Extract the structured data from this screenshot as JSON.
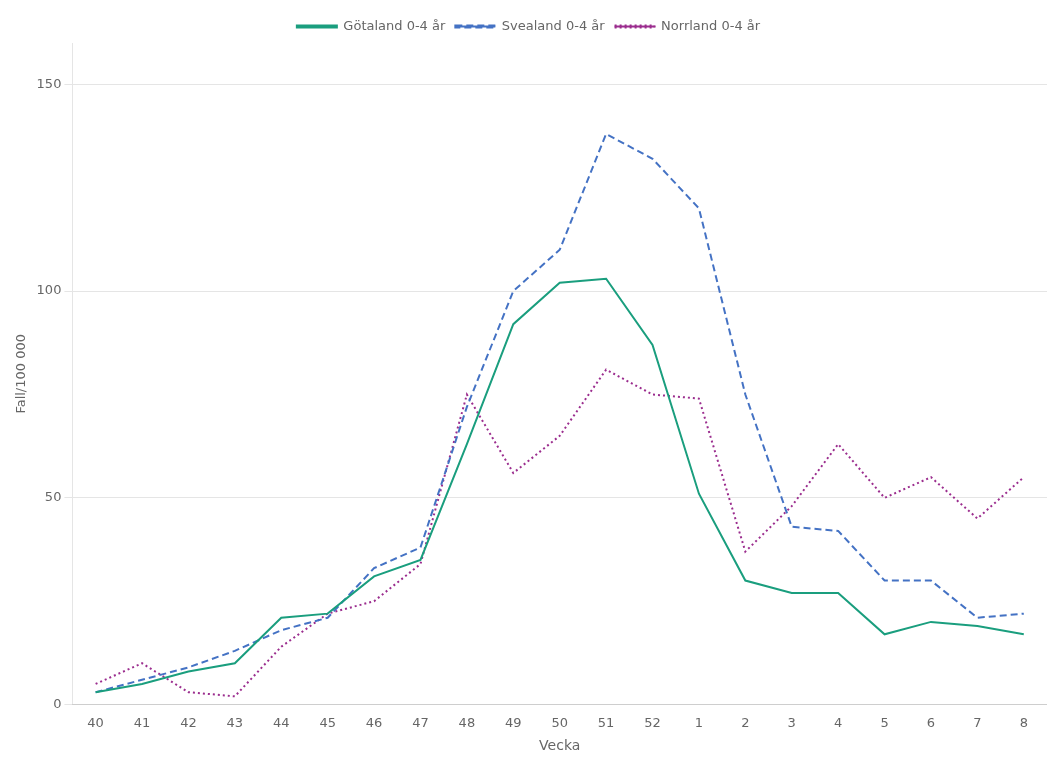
{
  "chart_data": {
    "type": "line",
    "xlabel": "Vecka",
    "ylabel": "Fall/100 000",
    "categories": [
      "40",
      "41",
      "42",
      "43",
      "44",
      "45",
      "46",
      "47",
      "48",
      "49",
      "50",
      "51",
      "52",
      "1",
      "2",
      "3",
      "4",
      "5",
      "6",
      "7",
      "8"
    ],
    "series": [
      {
        "name": "Götaland 0-4 år",
        "color": "#1a9e7e",
        "line_style": "solid",
        "values": [
          3,
          5,
          8,
          10,
          21,
          22,
          31,
          35,
          63,
          92,
          102,
          103,
          87,
          51,
          30,
          27,
          27,
          17,
          20,
          19,
          17
        ]
      },
      {
        "name": "Svealand 0-4 år",
        "color": "#4472c4",
        "line_style": "dashed",
        "values": [
          3,
          6,
          9,
          13,
          18,
          21,
          33,
          38,
          72,
          100,
          110,
          138,
          132,
          120,
          75,
          43,
          42,
          30,
          30,
          21,
          22
        ]
      },
      {
        "name": "Norrland 0-4 år",
        "color": "#9b2d8e",
        "line_style": "dotted",
        "values": [
          5,
          10,
          3,
          2,
          14,
          22,
          25,
          34,
          75,
          56,
          65,
          81,
          75,
          74,
          37,
          48,
          63,
          50,
          55,
          45,
          55
        ]
      }
    ],
    "ylim": [
      0,
      160
    ],
    "yticks": [
      0,
      50,
      100,
      150
    ],
    "grid": "y",
    "legend": "top"
  }
}
